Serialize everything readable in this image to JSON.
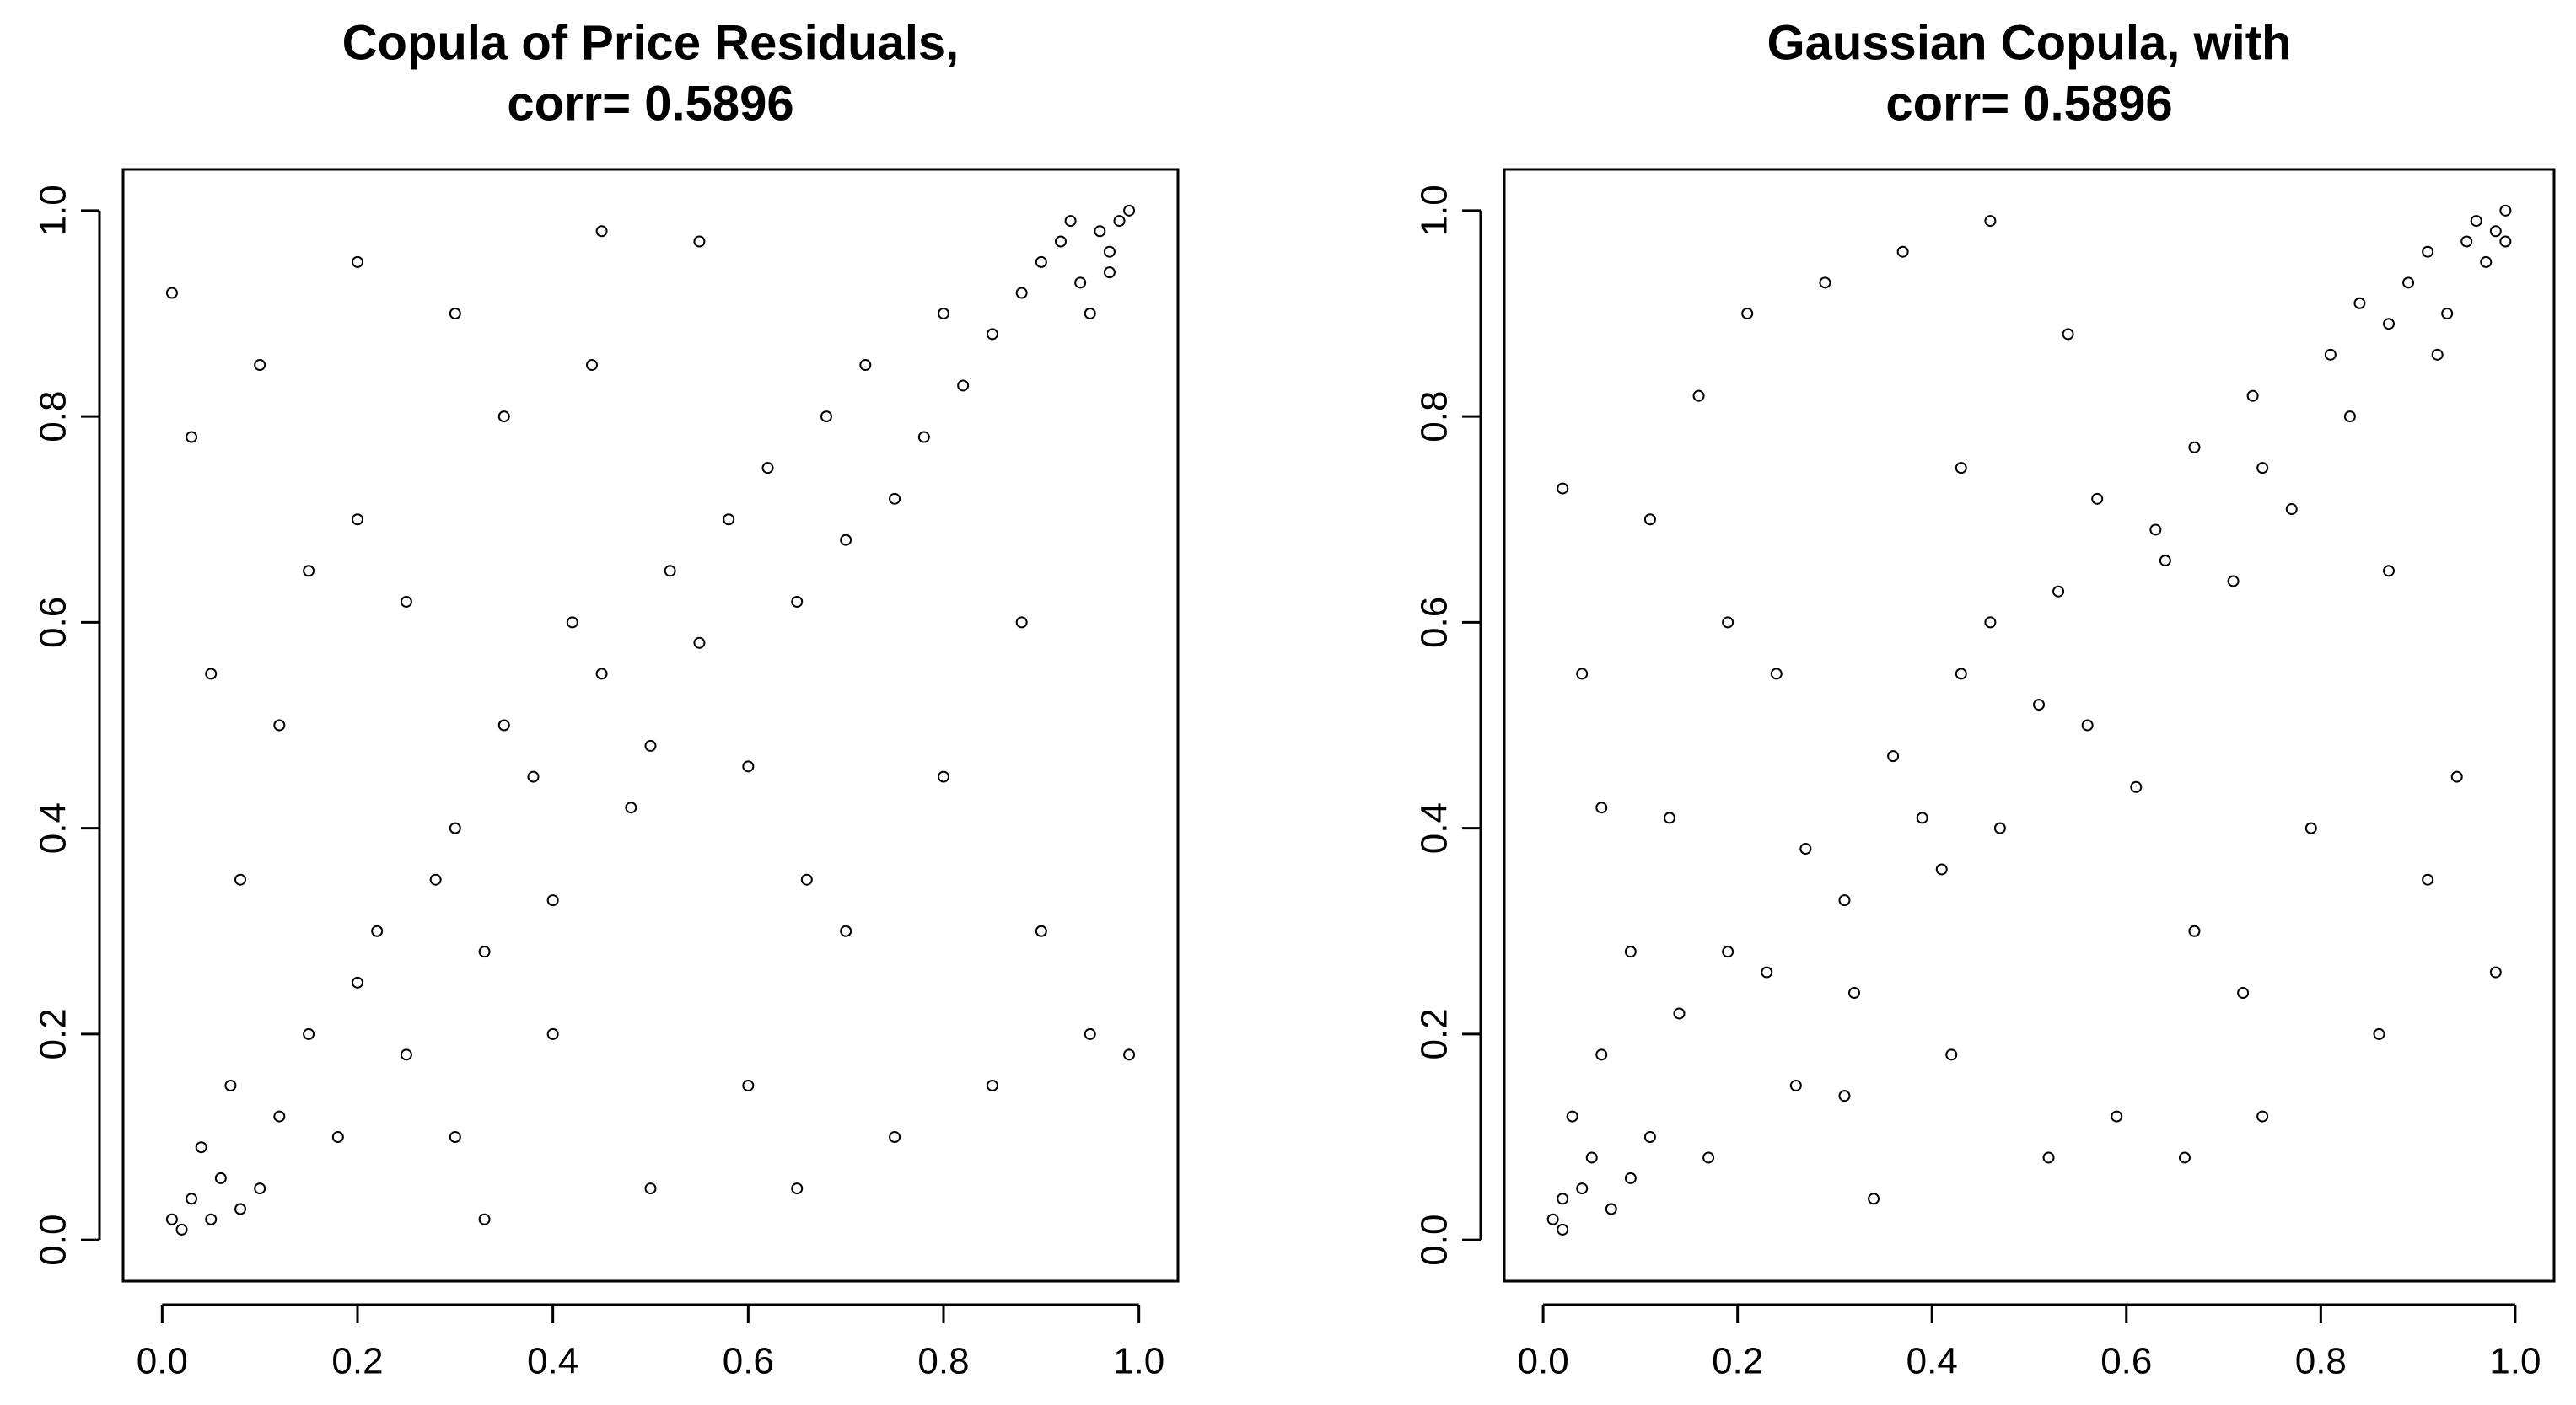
{
  "chart_data": [
    {
      "type": "scatter",
      "title": [
        "Copula of Price Residuals,",
        "corr= 0.5896"
      ],
      "color": "#000000",
      "marker": "open-circle",
      "xlim": [
        -0.04,
        1.04
      ],
      "ylim": [
        -0.04,
        1.04
      ],
      "xticks": [
        {
          "value": 0,
          "label": "0.0"
        },
        0.2,
        0.4,
        0.6,
        0.8,
        {
          "value": 1,
          "label": "1.0"
        }
      ],
      "yticks": [
        {
          "value": 0,
          "label": "0.0"
        },
        0.2,
        0.4,
        0.6,
        0.8,
        {
          "value": 1,
          "label": "1.0"
        }
      ],
      "x": [
        0.02,
        0.03,
        0.05,
        0.06,
        0.08,
        0.04,
        0.1,
        0.12,
        0.01,
        0.07,
        0.15,
        0.18,
        0.2,
        0.22,
        0.25,
        0.28,
        0.3,
        0.33,
        0.35,
        0.38,
        0.4,
        0.42,
        0.45,
        0.48,
        0.5,
        0.52,
        0.55,
        0.58,
        0.6,
        0.62,
        0.65,
        0.68,
        0.7,
        0.72,
        0.75,
        0.78,
        0.8,
        0.82,
        0.85,
        0.88,
        0.9,
        0.92,
        0.94,
        0.96,
        0.97,
        0.98,
        0.99,
        0.95,
        0.93,
        0.97,
        0.01,
        0.03,
        0.05,
        0.1,
        0.15,
        0.2,
        0.3,
        0.35,
        0.45,
        0.55,
        0.65,
        0.75,
        0.85,
        0.9,
        0.95,
        0.99,
        0.08,
        0.12,
        0.25,
        0.4,
        0.6,
        0.7,
        0.8,
        0.5,
        0.3,
        0.2,
        0.88,
        0.66,
        0.44,
        0.33
      ],
      "y": [
        0.01,
        0.04,
        0.02,
        0.06,
        0.03,
        0.09,
        0.05,
        0.12,
        0.02,
        0.15,
        0.2,
        0.1,
        0.25,
        0.3,
        0.18,
        0.35,
        0.4,
        0.28,
        0.5,
        0.45,
        0.33,
        0.6,
        0.55,
        0.42,
        0.48,
        0.65,
        0.58,
        0.7,
        0.46,
        0.75,
        0.62,
        0.8,
        0.68,
        0.85,
        0.72,
        0.78,
        0.9,
        0.83,
        0.88,
        0.92,
        0.95,
        0.97,
        0.93,
        0.98,
        0.96,
        0.99,
        1.0,
        0.9,
        0.99,
        0.94,
        0.92,
        0.78,
        0.55,
        0.85,
        0.65,
        0.95,
        0.9,
        0.8,
        0.98,
        0.97,
        0.05,
        0.1,
        0.15,
        0.3,
        0.2,
        0.18,
        0.35,
        0.5,
        0.62,
        0.2,
        0.15,
        0.3,
        0.45,
        0.05,
        0.1,
        0.7,
        0.6,
        0.35,
        0.85,
        0.02
      ]
    },
    {
      "type": "scatter",
      "title": [
        "Gaussian Copula, with",
        "corr= 0.5896"
      ],
      "color": "#000000",
      "marker": "open-circle",
      "xlim": [
        -0.04,
        1.04
      ],
      "ylim": [
        -0.04,
        1.04
      ],
      "xticks": [
        {
          "value": 0,
          "label": "0.0"
        },
        0.2,
        0.4,
        0.6,
        0.8,
        {
          "value": 1,
          "label": "1.0"
        }
      ],
      "yticks": [
        {
          "value": 0,
          "label": "0.0"
        },
        0.2,
        0.4,
        0.6,
        0.8,
        {
          "value": 1,
          "label": "1.0"
        }
      ],
      "x": [
        0.01,
        0.02,
        0.04,
        0.05,
        0.07,
        0.03,
        0.09,
        0.11,
        0.02,
        0.06,
        0.14,
        0.17,
        0.19,
        0.23,
        0.26,
        0.27,
        0.31,
        0.32,
        0.36,
        0.39,
        0.41,
        0.43,
        0.46,
        0.47,
        0.51,
        0.53,
        0.56,
        0.57,
        0.61,
        0.63,
        0.64,
        0.67,
        0.71,
        0.73,
        0.74,
        0.77,
        0.81,
        0.83,
        0.84,
        0.87,
        0.89,
        0.91,
        0.93,
        0.95,
        0.96,
        0.98,
        0.99,
        0.97,
        0.92,
        0.99,
        0.02,
        0.04,
        0.06,
        0.11,
        0.16,
        0.21,
        0.29,
        0.37,
        0.46,
        0.54,
        0.66,
        0.74,
        0.86,
        0.91,
        0.94,
        0.98,
        0.09,
        0.13,
        0.24,
        0.42,
        0.59,
        0.72,
        0.79,
        0.52,
        0.31,
        0.19,
        0.87,
        0.67,
        0.43,
        0.34
      ],
      "y": [
        0.02,
        0.01,
        0.05,
        0.08,
        0.03,
        0.12,
        0.06,
        0.1,
        0.04,
        0.18,
        0.22,
        0.08,
        0.28,
        0.26,
        0.15,
        0.38,
        0.33,
        0.24,
        0.47,
        0.41,
        0.36,
        0.55,
        0.6,
        0.4,
        0.52,
        0.63,
        0.5,
        0.72,
        0.44,
        0.69,
        0.66,
        0.77,
        0.64,
        0.82,
        0.75,
        0.71,
        0.86,
        0.8,
        0.91,
        0.89,
        0.93,
        0.96,
        0.9,
        0.97,
        0.99,
        0.98,
        1.0,
        0.95,
        0.86,
        0.97,
        0.73,
        0.55,
        0.42,
        0.7,
        0.82,
        0.9,
        0.93,
        0.96,
        0.99,
        0.88,
        0.08,
        0.12,
        0.2,
        0.35,
        0.45,
        0.26,
        0.28,
        0.41,
        0.55,
        0.18,
        0.12,
        0.24,
        0.4,
        0.08,
        0.14,
        0.6,
        0.65,
        0.3,
        0.75,
        0.04
      ]
    }
  ]
}
